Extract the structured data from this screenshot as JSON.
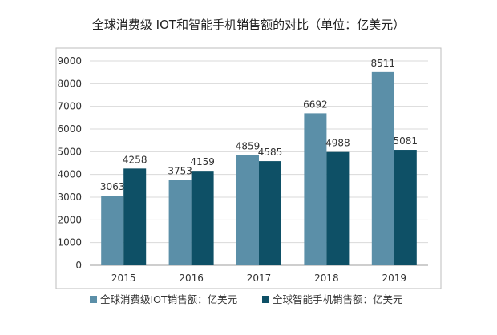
{
  "chart_data": {
    "type": "bar",
    "title": "全球消费级 IOT和智能手机销售额的对比（单位：亿美元）",
    "categories": [
      "2015",
      "2016",
      "2017",
      "2018",
      "2019"
    ],
    "series": [
      {
        "name": "全球消费级IOT销售额：亿美元",
        "color": "#5b8fa8",
        "values": [
          3063,
          3753,
          4859,
          6692,
          8511
        ]
      },
      {
        "name": "全球智能手机销售额：亿美元",
        "color": "#0e5066",
        "values": [
          4258,
          4159,
          4585,
          4988,
          5081
        ]
      }
    ],
    "xlabel": "",
    "ylabel": "",
    "ylim": [
      0,
      9000
    ],
    "yticks": [
      "0",
      "1000",
      "2000",
      "3000",
      "4000",
      "5000",
      "6000",
      "7000",
      "8000",
      "9000"
    ],
    "grid": true,
    "legend_position": "bottom"
  }
}
